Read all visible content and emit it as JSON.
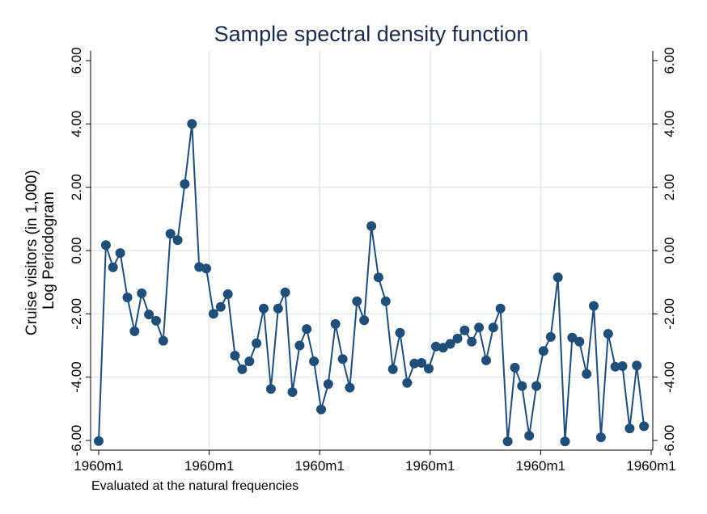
{
  "chart_data": {
    "type": "line",
    "title": "Sample spectral density function",
    "ylabel_lines": [
      "Cruise visitors (in 1,000)",
      "Log Periodogram"
    ],
    "note": "Evaluated at the natural frequencies",
    "ylim": [
      -6,
      6
    ],
    "yticks": [
      -6,
      -4,
      -2,
      0,
      2,
      4,
      6
    ],
    "ytick_labels": [
      "-6.00",
      "-4.00",
      "-2.00",
      "0.00",
      "2.00",
      "4.00",
      "6.00"
    ],
    "xlim": [
      1,
      77.5
    ],
    "xticks": [
      1,
      16.4,
      31.8,
      47.2,
      62.6,
      78
    ],
    "xtick_labels": [
      "1960m1",
      "1960m1",
      "1960m1",
      "1960m1",
      "1960m1",
      "1960m1"
    ],
    "grid": true,
    "right_axis": true,
    "colors": {
      "series": "#1f4e79",
      "grid": "#e1e8ee",
      "title": "#1a2a4a"
    },
    "series": [
      {
        "x": [
          1,
          2,
          3,
          4,
          5,
          6,
          7,
          8,
          9,
          10,
          11,
          12,
          13,
          14,
          15,
          16,
          17,
          18,
          19,
          20,
          21,
          22,
          23,
          24,
          25,
          26,
          27,
          28,
          29,
          30,
          31,
          32,
          33,
          34,
          35,
          36,
          37,
          38,
          39,
          40,
          41,
          42,
          43,
          44,
          45,
          46,
          47,
          48,
          49,
          50,
          51,
          52,
          53,
          54,
          55,
          56,
          57,
          58,
          59,
          60,
          61,
          62,
          63,
          64,
          65,
          66,
          67,
          68,
          69,
          70,
          71,
          72,
          73,
          74,
          75,
          76,
          77
        ],
        "values": [
          -6.02,
          0.17,
          -0.53,
          -0.08,
          -1.48,
          -2.55,
          -1.35,
          -2.02,
          -2.22,
          -2.85,
          0.53,
          0.33,
          2.1,
          4.0,
          -0.52,
          -0.57,
          -2.0,
          -1.78,
          -1.38,
          -3.32,
          -3.75,
          -3.5,
          -2.93,
          -1.83,
          -4.37,
          -1.83,
          -1.32,
          -4.47,
          -3.0,
          -2.48,
          -3.5,
          -5.02,
          -4.22,
          -2.32,
          -3.43,
          -4.33,
          -1.6,
          -2.2,
          0.77,
          -0.85,
          -1.6,
          -3.75,
          -2.6,
          -4.18,
          -3.57,
          -3.55,
          -3.73,
          -3.03,
          -3.07,
          -2.95,
          -2.78,
          -2.52,
          -2.88,
          -2.43,
          -3.47,
          -2.43,
          -1.83,
          -6.03,
          -3.7,
          -4.28,
          -5.85,
          -4.28,
          -3.17,
          -2.73,
          -0.85,
          -6.03,
          -2.75,
          -2.88,
          -3.9,
          -1.75,
          -5.9,
          -2.63,
          -3.67,
          -3.65,
          -5.62,
          -3.63,
          -5.55
        ]
      }
    ]
  }
}
